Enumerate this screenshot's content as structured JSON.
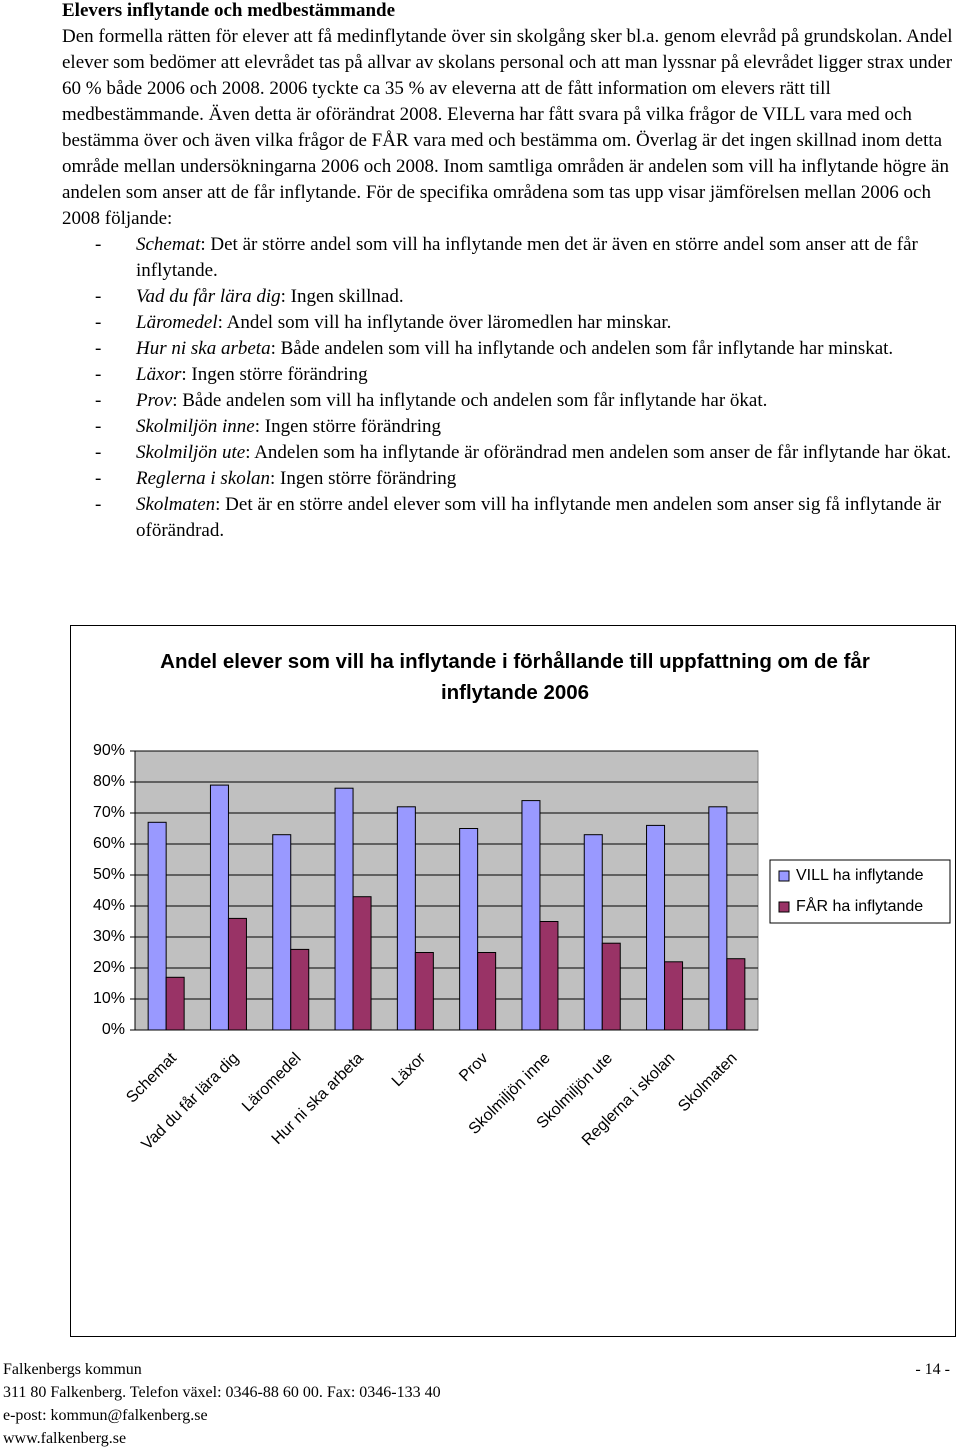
{
  "heading": "Elevers inflytande och medbestämmande",
  "paragraph": "Den formella rätten för elever att få medinflytande över sin skolgång sker bl.a. genom elevråd på grundskolan. Andel elever som bedömer att elevrådet tas på allvar av skolans personal och att man lyssnar på elevrådet ligger strax under 60 % både 2006 och 2008. 2006 tyckte ca 35 % av eleverna att de fått information om elevers rätt till medbestämmande. Även detta är oförändrat 2008. Eleverna har fått svara på vilka frågor de VILL vara med och bestämma över och även vilka frågor de FÅR vara med och bestämma om. Överlag är det ingen skillnad inom detta område mellan undersökningarna 2006 och 2008. Inom samtliga områden är andelen som vill ha inflytande högre än andelen som anser att de får inflytande. För de specifika områdena som tas upp visar jämförelsen mellan 2006 och 2008 följande:",
  "list": [
    {
      "term": "Schemat",
      "text": ": Det är större andel som vill ha inflytande men det är även en större andel som anser att de får inflytande."
    },
    {
      "term": "Vad du får lära dig",
      "text": ": Ingen skillnad."
    },
    {
      "term": "Läromedel",
      "text": ": Andel som vill ha inflytande över läromedlen har minskar."
    },
    {
      "term": "Hur ni ska arbeta",
      "text": ": Både andelen som vill ha inflytande och andelen som får inflytande har minskat."
    },
    {
      "term": "Läxor",
      "text": ": Ingen större förändring"
    },
    {
      "term": "Prov",
      "text": ": Både andelen som vill ha inflytande och andelen som får inflytande har ökat."
    },
    {
      "term": "Skolmiljön inne",
      "text": ": Ingen större förändring"
    },
    {
      "term": "Skolmiljön ute",
      "text": ": Andelen som ha inflytande är oförändrad men andelen som anser de får inflytande har ökat."
    },
    {
      "term": "Reglerna i skolan",
      "text": ": Ingen större förändring"
    },
    {
      "term": "Skolmaten",
      "text": ": Det är en större andel elever som vill ha inflytande men andelen som anser sig få inflytande är oförändrad."
    }
  ],
  "chart_data": {
    "type": "bar",
    "title": "Andel elever som vill ha inflytande i förhållande till uppfattning om de får inflytande 2006",
    "categories": [
      "Schemat",
      "Vad du får lära dig",
      "Läromedel",
      "Hur ni ska arbeta",
      "Läxor",
      "Prov",
      "Skolmiljön inne",
      "Skolmiljön ute",
      "Reglerna i skolan",
      "Skolmaten"
    ],
    "series": [
      {
        "name": "VILL ha inflytande",
        "color": "#9999ff",
        "values": [
          67,
          79,
          63,
          78,
          72,
          65,
          74,
          63,
          66,
          72
        ]
      },
      {
        "name": "FÅR ha inflytande",
        "color": "#993366",
        "values": [
          17,
          36,
          26,
          43,
          25,
          25,
          35,
          28,
          22,
          23
        ]
      }
    ],
    "ylim": [
      0,
      90
    ],
    "yticks": [
      {
        "value": 0,
        "label": "0%"
      },
      {
        "value": 10,
        "label": "10%"
      },
      {
        "value": 20,
        "label": "20%"
      },
      {
        "value": 30,
        "label": "30%"
      },
      {
        "value": 40,
        "label": "40%"
      },
      {
        "value": 50,
        "label": "50%"
      },
      {
        "value": 60,
        "label": "60%"
      },
      {
        "value": 70,
        "label": "70%"
      },
      {
        "value": 80,
        "label": "80%"
      },
      {
        "value": 90,
        "label": "90%"
      }
    ],
    "grid": true,
    "legend": "right"
  },
  "footer": {
    "org": "Falkenbergs kommun",
    "page": "- 14 -",
    "address": "311 80 Falkenberg. Telefon växel: 0346-88 60 00. Fax: 0346-133 40",
    "email": "e-post: kommun@falkenberg.se",
    "web": "www.falkenberg.se"
  }
}
